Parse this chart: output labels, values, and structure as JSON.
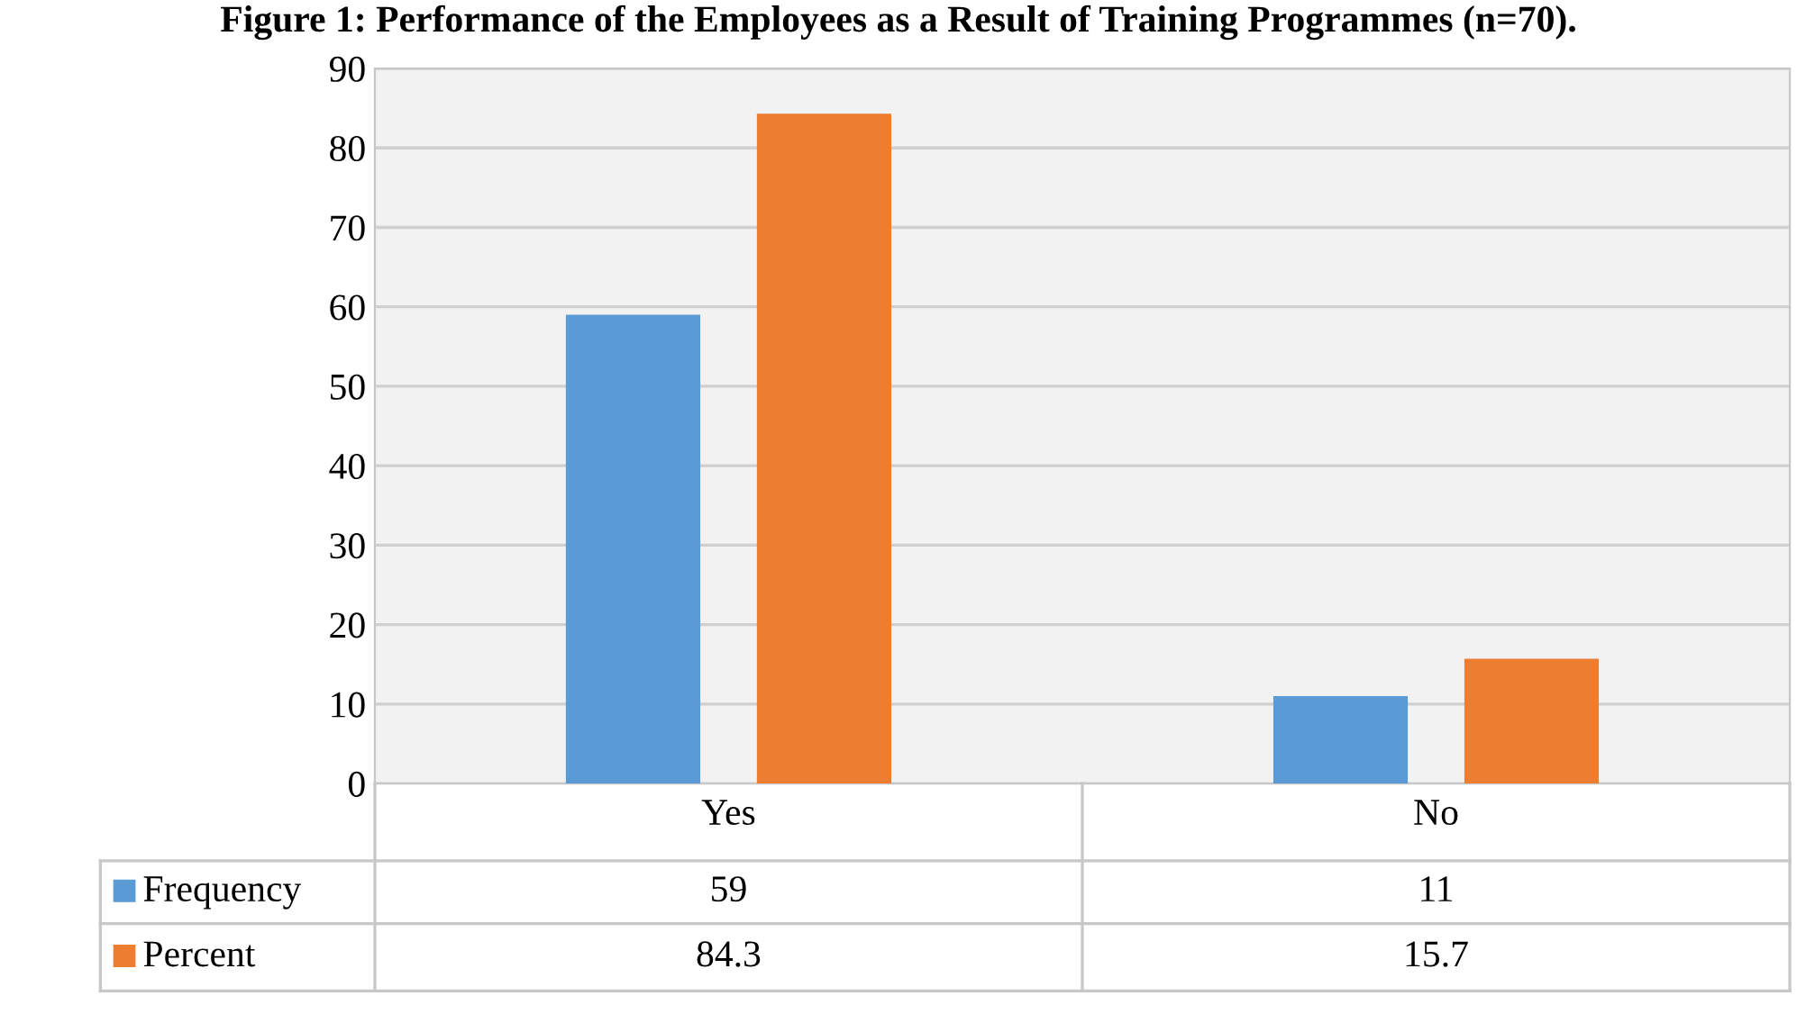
{
  "chart_data": {
    "type": "bar",
    "title": "Figure 1: Performance of the Employees as a Result of Training Programmes (n=70).",
    "categories": [
      "Yes",
      "No"
    ],
    "series": [
      {
        "name": "Frequency",
        "color": "#5b9bd5",
        "values": [
          59,
          11
        ]
      },
      {
        "name": "Percent",
        "color": "#ed7d31",
        "values": [
          84.3,
          15.7
        ]
      }
    ],
    "ylim": [
      0,
      90
    ],
    "yticks": [
      0,
      10,
      20,
      30,
      40,
      50,
      60,
      70,
      80,
      90
    ],
    "grid": "y",
    "legend": "bottom",
    "data_labels": true
  }
}
